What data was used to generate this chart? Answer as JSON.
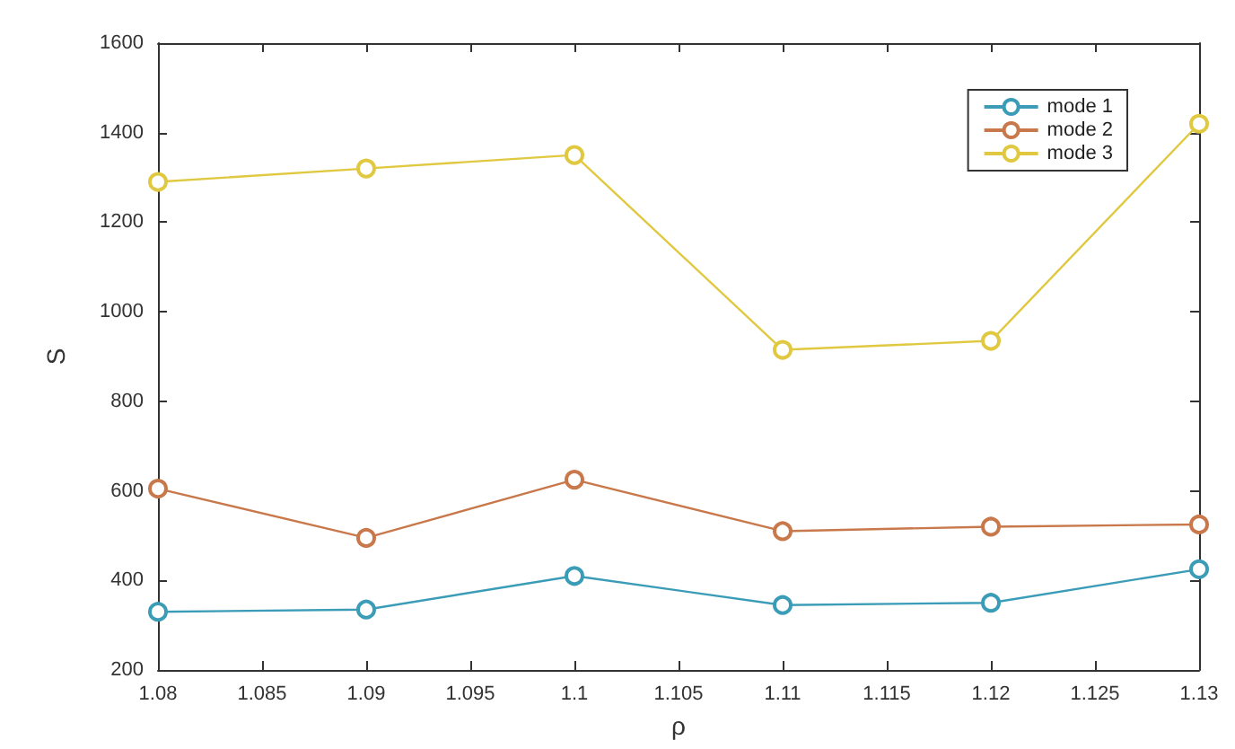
{
  "chart_data": {
    "type": "line",
    "xlabel": "ρ",
    "ylabel": "S",
    "x": [
      1.08,
      1.09,
      1.1,
      1.11,
      1.12,
      1.13
    ],
    "series": [
      {
        "name": "mode 1",
        "color": "#3b9cb8",
        "values": [
          330,
          335,
          410,
          345,
          350,
          425
        ]
      },
      {
        "name": "mode 2",
        "color": "#c8784a",
        "values": [
          605,
          495,
          625,
          510,
          520,
          525
        ]
      },
      {
        "name": "mode 3",
        "color": "#e0c840",
        "values": [
          1290,
          1320,
          1350,
          915,
          935,
          1420
        ]
      }
    ],
    "xlim": [
      1.08,
      1.13
    ],
    "xticks": [
      1.08,
      1.085,
      1.09,
      1.095,
      1.1,
      1.105,
      1.11,
      1.115,
      1.12,
      1.125,
      1.13
    ],
    "ylim": [
      200,
      1600
    ],
    "yticks": [
      200,
      400,
      600,
      800,
      1000,
      1200,
      1400,
      1600
    ],
    "grid": false,
    "legend": "top right",
    "marker": "circle",
    "line_style": "solid"
  }
}
